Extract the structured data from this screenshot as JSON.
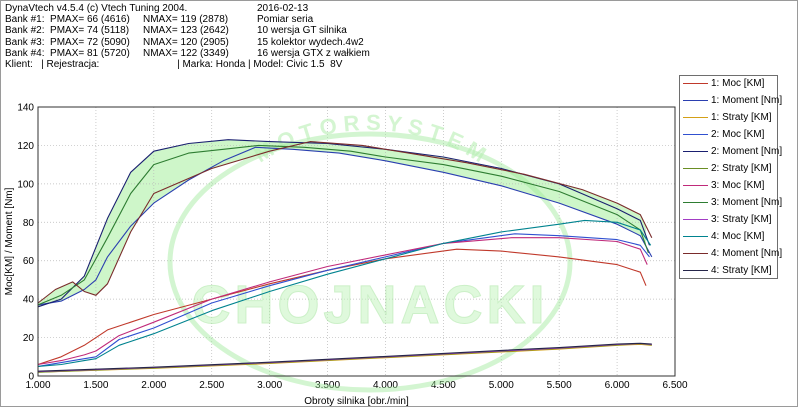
{
  "header": {
    "rows": [
      {
        "a": "DynaVtech v4.5.4 (c) Vtech Tuning 2004.",
        "b": "",
        "c": "2016-02-13"
      },
      {
        "a": "Bank #1:  PMAX= 66 (4616)",
        "b": "NMAX= 119 (2878)",
        "c": "Pomiar seria"
      },
      {
        "a": "Bank #2:  PMAX= 74 (5118)",
        "b": "NMAX= 123 (2642)",
        "c": "10 wersja GT silnika"
      },
      {
        "a": "Bank #3:  PMAX= 72 (5090)",
        "b": "NMAX= 120 (2905)",
        "c": "15 kolektor wydech.4w2"
      },
      {
        "a": "Bank #4:  PMAX= 81 (5720)",
        "b": "NMAX= 122 (3349)",
        "c": "16 wersja GTX z wałkiem"
      }
    ],
    "client": "Klient:   | Rejestracja:                            | Marka: Honda | Model: Civic 1.5  8V"
  },
  "chart_data": {
    "type": "line",
    "xlabel": "Obroty silnika [obr./min]",
    "ylabel": "Moc[KM] / Moment [Nm]",
    "xlim": [
      1000,
      6500
    ],
    "ylim": [
      0,
      140
    ],
    "xticks": [
      1000,
      1500,
      2000,
      2500,
      3000,
      3500,
      4000,
      4500,
      5000,
      5500,
      6000,
      6500
    ],
    "xtick_labels": [
      "1.000",
      "1.500",
      "2.000",
      "2.500",
      "3.000",
      "3.500",
      "4.000",
      "4.500",
      "5.000",
      "5.500",
      "6.000",
      "6.500"
    ],
    "yticks": [
      0,
      20,
      40,
      60,
      80,
      100,
      120,
      140
    ],
    "ytick_labels": [
      "0",
      "20",
      "40",
      "60",
      "80",
      "100",
      "120",
      "140"
    ],
    "grid": true,
    "legend_position": "right",
    "watermark": "MOTOR SYSTEM CHOJNACKI",
    "moment_band_color": "#c6f5c0",
    "series": [
      {
        "name": "1: Moc [KM]",
        "color": "#c0392b",
        "x": [
          1000,
          1200,
          1400,
          1600,
          1800,
          2000,
          2500,
          3000,
          3500,
          4000,
          4616,
          5000,
          5500,
          6000,
          6200,
          6250
        ],
        "y": [
          6,
          10,
          16,
          24,
          28,
          32,
          40,
          48,
          55,
          61,
          66,
          65,
          62,
          58,
          54,
          47
        ]
      },
      {
        "name": "1: Moment [Nm]",
        "color": "#2b3fb0",
        "x": [
          1000,
          1200,
          1400,
          1500,
          1600,
          1800,
          2000,
          2300,
          2600,
          2878,
          3200,
          3600,
          4000,
          4500,
          5000,
          5500,
          6000,
          6200,
          6300
        ],
        "y": [
          37,
          39,
          45,
          50,
          62,
          78,
          90,
          102,
          112,
          119,
          118,
          116,
          112,
          106,
          99,
          90,
          79,
          73,
          62
        ]
      },
      {
        "name": "1: Straty [KM]",
        "color": "#d4a017",
        "x": [
          1000,
          2000,
          3000,
          4000,
          5000,
          5500,
          6000,
          6200,
          6300
        ],
        "y": [
          2,
          4,
          6.5,
          9.5,
          12.5,
          14,
          16,
          16.5,
          16
        ]
      },
      {
        "name": "2: Moc [KM]",
        "color": "#3050d0",
        "x": [
          1000,
          1200,
          1400,
          1500,
          1700,
          2000,
          2500,
          3000,
          3500,
          4000,
          4500,
          5118,
          5500,
          6000,
          6200,
          6280
        ],
        "y": [
          5,
          7,
          9,
          10,
          19,
          25,
          38,
          47,
          55,
          62,
          69,
          74,
          73,
          71,
          68,
          62
        ]
      },
      {
        "name": "2: Moment [Nm]",
        "color": "#1a1f70",
        "x": [
          1000,
          1200,
          1400,
          1600,
          1800,
          2000,
          2300,
          2642,
          3000,
          3500,
          4000,
          4500,
          5000,
          5500,
          6000,
          6200,
          6280
        ],
        "y": [
          36,
          40,
          52,
          82,
          106,
          117,
          121,
          123,
          122,
          121,
          118,
          114,
          108,
          100,
          87,
          81,
          68
        ]
      },
      {
        "name": "2: Straty [KM]",
        "color": "#6a8e23",
        "x": [
          1000,
          2000,
          3000,
          4000,
          5000,
          5500,
          6000,
          6200,
          6300
        ],
        "y": [
          2,
          4.2,
          6.8,
          9.8,
          12.8,
          14.3,
          16.2,
          16.8,
          16.2
        ]
      },
      {
        "name": "3: Moc [KM]",
        "color": "#c02a7a",
        "x": [
          1000,
          1200,
          1400,
          1500,
          1700,
          2000,
          2500,
          3000,
          3500,
          4000,
          4500,
          5090,
          5500,
          6000,
          6200,
          6260
        ],
        "y": [
          6,
          8,
          11,
          13,
          21,
          28,
          40,
          49,
          57,
          63,
          69,
          72,
          72,
          70,
          66,
          58
        ]
      },
      {
        "name": "3: Moment [Nm]",
        "color": "#2e7d32",
        "x": [
          1000,
          1200,
          1400,
          1600,
          1800,
          2000,
          2300,
          2600,
          2905,
          3300,
          3700,
          4000,
          4500,
          5000,
          5500,
          6000,
          6200,
          6270
        ],
        "y": [
          37,
          42,
          50,
          72,
          95,
          110,
          116,
          118,
          120,
          119,
          117,
          114,
          110,
          104,
          96,
          84,
          76,
          64
        ]
      },
      {
        "name": "3: Straty [KM]",
        "color": "#a23cc4",
        "x": [
          1000,
          2000,
          3000,
          4000,
          5000,
          5500,
          6000,
          6200,
          6300
        ],
        "y": [
          2.3,
          4.4,
          7,
          10,
          13,
          14.5,
          16.4,
          16.9,
          16.4
        ]
      },
      {
        "name": "4: Moc [KM]",
        "color": "#00838f",
        "x": [
          1000,
          1200,
          1400,
          1500,
          1700,
          2000,
          2500,
          3000,
          3500,
          4000,
          4500,
          5000,
          5500,
          5720,
          6000,
          6200,
          6290
        ],
        "y": [
          5,
          6,
          8,
          9,
          16,
          22,
          34,
          44,
          53,
          61,
          69,
          75,
          79,
          81,
          80,
          76,
          68
        ]
      },
      {
        "name": "4: Moment [Nm]",
        "color": "#7a2b2b",
        "x": [
          1000,
          1150,
          1300,
          1400,
          1500,
          1600,
          1800,
          2000,
          2500,
          3000,
          3349,
          3800,
          4200,
          4700,
          5200,
          5700,
          6000,
          6200,
          6300
        ],
        "y": [
          38,
          45,
          49,
          44,
          42,
          48,
          75,
          95,
          108,
          117,
          122,
          120,
          116,
          111,
          105,
          97,
          90,
          84,
          72
        ]
      },
      {
        "name": "4: Straty [KM]",
        "color": "#26264a",
        "x": [
          1000,
          2000,
          3000,
          4000,
          5000,
          5500,
          6000,
          6200,
          6300
        ],
        "y": [
          2.5,
          4.6,
          7.2,
          10.2,
          13.3,
          14.8,
          16.6,
          17,
          16.6
        ]
      }
    ]
  }
}
